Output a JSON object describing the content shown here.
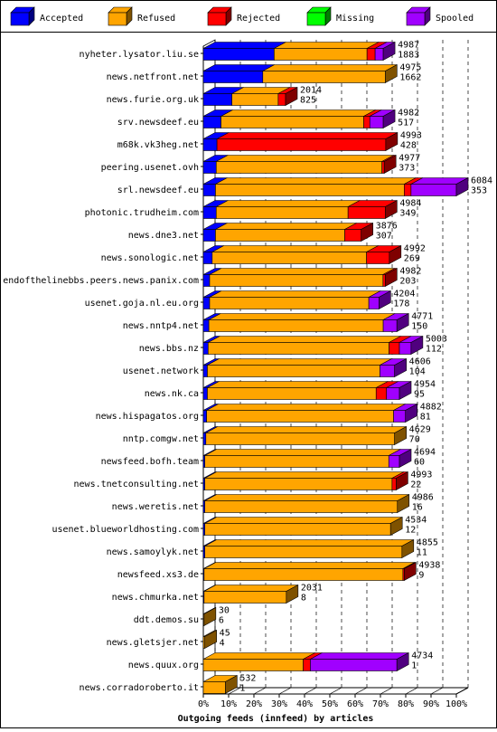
{
  "chart_data": {
    "type": "bar",
    "orientation": "horizontal",
    "stacked": true,
    "three_d": true,
    "title": "",
    "xlabel": "Outgoing feeds (innfeed) by articles",
    "ylabel": "",
    "xlim": [
      0,
      100
    ],
    "x_unit": "%",
    "x_ticks": [
      "0%",
      "10%",
      "20%",
      "30%",
      "40%",
      "50%",
      "60%",
      "70%",
      "80%",
      "90%",
      "100%"
    ],
    "grid": "vertical dashed",
    "legend_position": "top",
    "series": [
      {
        "name": "Accepted",
        "color": "#0000ff",
        "dark": "#00007f"
      },
      {
        "name": "Refused",
        "color": "#ffa500",
        "dark": "#7f5200"
      },
      {
        "name": "Rejected",
        "color": "#ff0000",
        "dark": "#7f0000"
      },
      {
        "name": "Missing",
        "color": "#00ff00",
        "dark": "#007f00"
      },
      {
        "name": "Spooled",
        "color": "#a000ff",
        "dark": "#50007f"
      }
    ],
    "rows": [
      {
        "name": "nyheter.lysator.liu.se",
        "total": "4987",
        "sub": "1883",
        "values": [
          0.0,
          28.0,
          64.7,
          0,
          67.9,
          0,
          71.1
        ]
      },
      {
        "name": "news.netfront.net",
        "total": "4975",
        "sub": "1662",
        "values": [
          0.0,
          23.5,
          71.9,
          0,
          71.9,
          0,
          71.9
        ]
      },
      {
        "name": "news.furie.org.uk",
        "total": "2014",
        "sub": "825",
        "values": [
          0.0,
          11.3,
          29.6,
          0,
          32.5,
          0,
          32.5
        ]
      },
      {
        "name": "srv.newsdeef.eu",
        "total": "4982",
        "sub": "517",
        "values": [
          0.0,
          7.0,
          63.4,
          0,
          65.8,
          0,
          71.1
        ]
      },
      {
        "name": "m68k.vk3heg.net",
        "total": "4993",
        "sub": "428",
        "values": [
          0.0,
          5.4,
          5.4,
          0,
          72.1,
          0,
          71.5
        ]
      },
      {
        "name": "peering.usenet.ovh",
        "total": "4977",
        "sub": "373",
        "values": [
          0.0,
          5.1,
          70.6,
          0,
          71.5,
          0,
          71.5
        ]
      },
      {
        "name": "srl.newsdeef.eu",
        "total": "6084",
        "sub": "353",
        "values": [
          0.0,
          4.8,
          79.4,
          0,
          82.1,
          0,
          100
        ]
      },
      {
        "name": "photonic.trudheim.com",
        "total": "4984",
        "sub": "349",
        "values": [
          0.0,
          5.1,
          57.2,
          0,
          71.9,
          0,
          71.9
        ]
      },
      {
        "name": "news.dne3.net",
        "total": "3876",
        "sub": "307",
        "values": [
          0.0,
          4.8,
          55.9,
          0,
          62.4,
          0,
          62.4
        ]
      },
      {
        "name": "news.sonologic.net",
        "total": "4992",
        "sub": "269",
        "values": [
          0.0,
          3.5,
          64.5,
          0,
          73.5,
          0,
          73.5
        ]
      },
      {
        "name": "endofthelinebbs.peers.news.panix.com",
        "total": "4982",
        "sub": "203",
        "values": [
          0.0,
          2.5,
          71.0,
          0,
          71.9,
          0,
          71.9
        ]
      },
      {
        "name": "usenet.goja.nl.eu.org",
        "total": "4204",
        "sub": "178",
        "values": [
          0.0,
          2.5,
          65.4,
          0,
          65.4,
          0,
          69.4
        ]
      },
      {
        "name": "news.nntp4.net",
        "total": "4771",
        "sub": "150",
        "values": [
          0.0,
          2.2,
          71.1,
          0,
          71.1,
          0,
          76.5
        ]
      },
      {
        "name": "news.bbs.nz",
        "total": "5003",
        "sub": "112",
        "values": [
          0.0,
          1.9,
          73.4,
          0,
          77.5,
          0,
          82.1
        ]
      },
      {
        "name": "usenet.network",
        "total": "4606",
        "sub": "104",
        "values": [
          0.0,
          1.6,
          69.8,
          0,
          69.8,
          0,
          75.6
        ]
      },
      {
        "name": "news.nk.ca",
        "total": "4954",
        "sub": "95",
        "values": [
          0.0,
          1.6,
          68.3,
          0,
          72.4,
          0,
          77.5
        ]
      },
      {
        "name": "news.hispagatos.org",
        "total": "4882",
        "sub": "81",
        "values": [
          0.0,
          1.3,
          75.2,
          0,
          75.2,
          0,
          79.9
        ]
      },
      {
        "name": "nntp.comgw.net",
        "total": "4629",
        "sub": "70",
        "values": [
          0.0,
          1.0,
          75.6,
          0,
          75.6,
          0,
          75.6
        ]
      },
      {
        "name": "newsfeed.bofh.team",
        "total": "4694",
        "sub": "60",
        "values": [
          0.0,
          0.6,
          73.3,
          0,
          73.3,
          0,
          77.5
        ]
      },
      {
        "name": "news.tnetconsulting.net",
        "total": "4993",
        "sub": "22",
        "values": [
          0.0,
          0.6,
          74.6,
          0,
          76.2,
          0,
          76.2
        ]
      },
      {
        "name": "news.weretis.net",
        "total": "4986",
        "sub": "16",
        "values": [
          0.0,
          0.6,
          76.7,
          0,
          76.5,
          0,
          76.5
        ]
      },
      {
        "name": "usenet.blueworldhosting.com",
        "total": "4534",
        "sub": "12",
        "values": [
          0.0,
          0.6,
          74.0,
          0,
          74.0,
          0,
          74.0
        ]
      },
      {
        "name": "news.samoylyk.net",
        "total": "4855",
        "sub": "11",
        "values": [
          0.0,
          0.6,
          78.5,
          0,
          78.5,
          0,
          78.5
        ]
      },
      {
        "name": "newsfeed.xs3.de",
        "total": "4938",
        "sub": "9",
        "values": [
          0.0,
          0.3,
          78.9,
          0,
          79.4,
          0,
          79.4
        ]
      },
      {
        "name": "news.chmurka.net",
        "total": "2031",
        "sub": "8",
        "values": [
          0.0,
          0.3,
          32.8,
          0,
          32.8,
          0,
          32.8
        ]
      },
      {
        "name": "ddt.demos.su",
        "total": "30",
        "sub": "6",
        "values": [
          0.0,
          0.0,
          0.3,
          0,
          0.3,
          0,
          0.3
        ]
      },
      {
        "name": "news.gletsjer.net",
        "total": "45",
        "sub": "4",
        "values": [
          0.0,
          0.0,
          0.6,
          0,
          0.6,
          0,
          0.6
        ]
      },
      {
        "name": "news.quux.org",
        "total": "4734",
        "sub": "1",
        "values": [
          0.0,
          0.0,
          39.5,
          0,
          42.3,
          0,
          76.5
        ]
      },
      {
        "name": "news.corradoroberto.it",
        "total": "532",
        "sub": "1",
        "values": [
          0.0,
          0.0,
          8.7,
          0,
          8.7,
          0,
          8.7
        ]
      }
    ]
  }
}
